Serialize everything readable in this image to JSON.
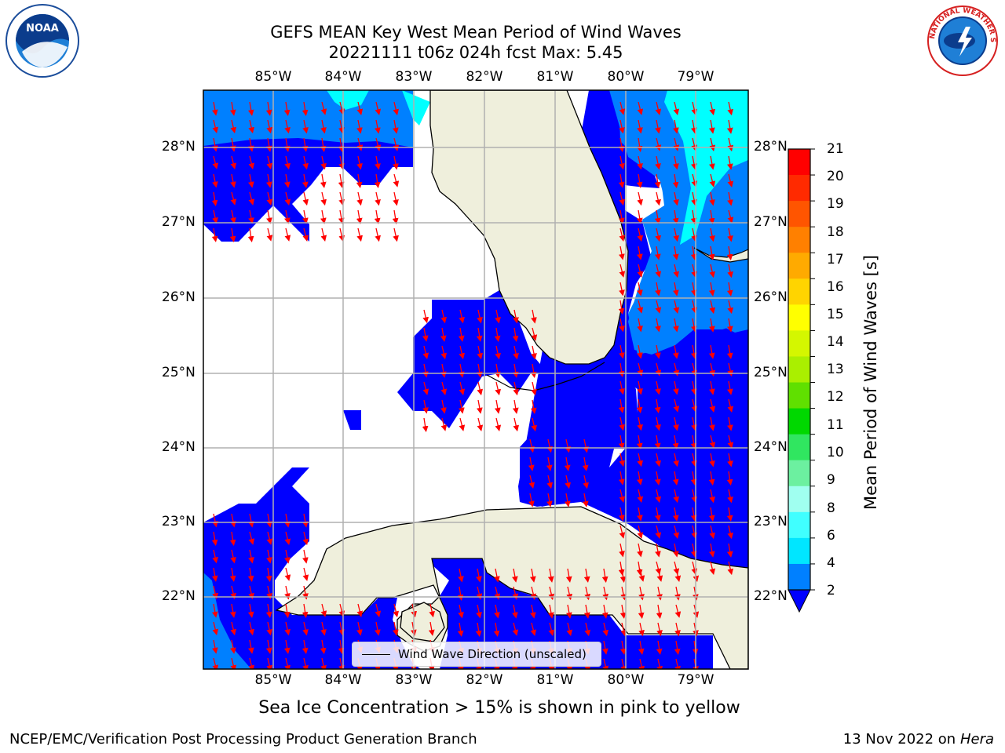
{
  "title_line1": "GEFS MEAN Key West Mean Period of Wind Waves",
  "title_line2": "20221111 t06z 024h fcst   Max: 5.45",
  "lon_labels": [
    "85°W",
    "84°W",
    "83°W",
    "82°W",
    "81°W",
    "80°W",
    "79°W"
  ],
  "lat_labels": [
    "28°N",
    "27°N",
    "26°N",
    "25°N",
    "24°N",
    "23°N",
    "22°N"
  ],
  "colorbar": {
    "label": "Mean Period of Wind Waves [s]",
    "ticks": [
      "21",
      "20",
      "19",
      "18",
      "17",
      "16",
      "15",
      "14",
      "13",
      "12",
      "11",
      "10",
      "9",
      "8",
      "6",
      "4",
      "2"
    ],
    "colors": [
      "#ff0000",
      "#ff2a00",
      "#ff5500",
      "#ff8000",
      "#ffaa00",
      "#ffd400",
      "#ffff00",
      "#d4f700",
      "#aaef00",
      "#60e000",
      "#00d800",
      "#30e660",
      "#6cf0a0",
      "#a0fff0",
      "#40ffff",
      "#00e6ff",
      "#0080ff"
    ]
  },
  "legend": {
    "label": "Wind Wave Direction (unscaled)"
  },
  "note": "Sea Ice Concentration > 15% is shown in pink to yellow",
  "footer_left": "NCEP/EMC/Verification Post Processing Product Generation Branch",
  "footer_date": "13 Nov 2022 on",
  "footer_machine": "Hera",
  "logos": {
    "left": "NOAA",
    "right": "NATIONAL WEATHER SERVICE"
  }
}
